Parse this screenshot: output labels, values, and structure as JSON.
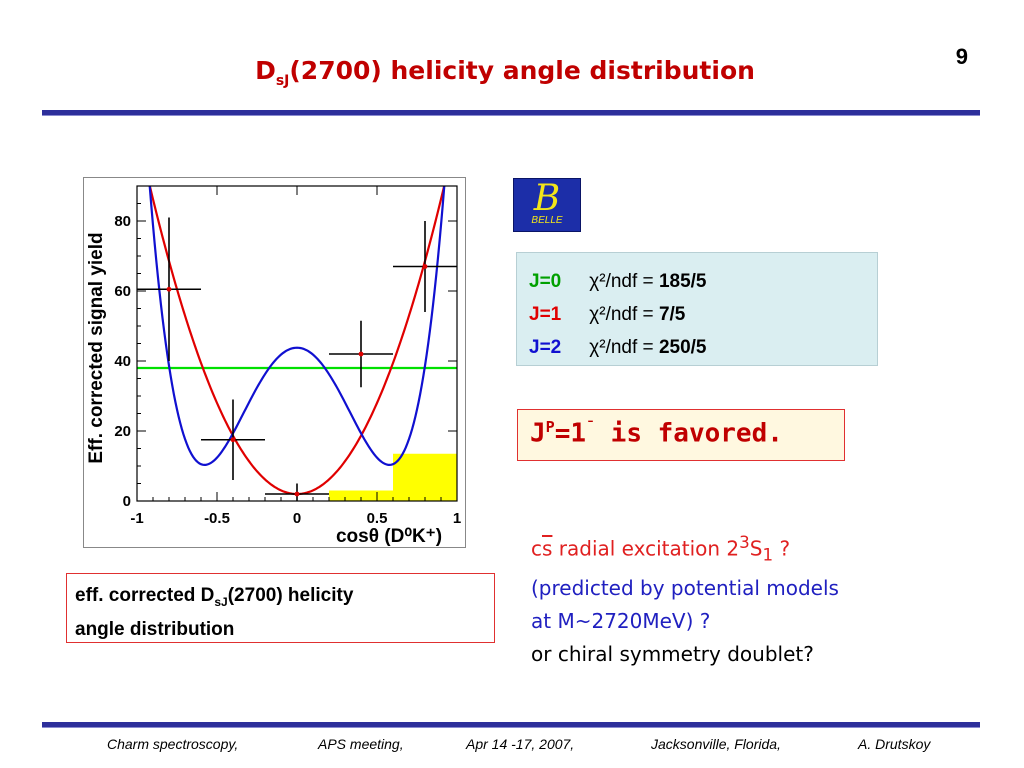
{
  "page_number": "9",
  "title": {
    "prefix": "D",
    "subscript": "sJ",
    "suffix": "(2700)  helicity angle distribution"
  },
  "colors": {
    "title": "#c00000",
    "rule": "#2d2f9b",
    "j0": "#00a000",
    "j1": "#e00000",
    "j2": "#1010d0",
    "fit_box": "#daeef1",
    "background_fill": "#ffff00"
  },
  "logo": {
    "symbol": "B",
    "word": "BELLE"
  },
  "fit_results": [
    {
      "label": "J=0",
      "chi_label": "χ²/ndf =",
      "value": "185/5",
      "color": "#00a000"
    },
    {
      "label": "J=1",
      "chi_label": "χ²/ndf =",
      "value": "7/5",
      "color": "#e00000"
    },
    {
      "label": "J=2",
      "chi_label": "χ²/ndf =",
      "value": "250/5",
      "color": "#1010d0"
    }
  ],
  "conclusion": {
    "prefix": "J",
    "sup": "P",
    "suffix": "=1",
    "minus": "ˉ",
    "rest": " is favored."
  },
  "caption": {
    "part1": "eff. corrected D",
    "subscript": "sJ",
    "part2": "(2700) helicity",
    "line2": "angle distribution"
  },
  "notes": {
    "line1_cs": "cs",
    "line1_rest": " radial excitation 2",
    "line1_sup": "3",
    "line1_S": "S",
    "line1_sub": "1",
    "line1_end": " ?",
    "line2": "(predicted by potential models",
    "line3": "at  M~2720MeV) ?",
    "line4": "or chiral symmetry  doublet?"
  },
  "footer": {
    "topic": "Charm spectroscopy,",
    "meeting": "APS meeting,",
    "date": "Apr 14 -17, 2007,",
    "place": "Jacksonville, Florida,",
    "author": "A. Drutskoy"
  },
  "chart_data": {
    "type": "scatter",
    "ylabel": "Eff. corrected signal yield",
    "xlabel": "cosθ (D⁰K⁺)",
    "xlim": [
      -1,
      1
    ],
    "ylim": [
      0,
      90
    ],
    "x_ticks": [
      "-1",
      "-0.5",
      "0",
      "0.5",
      "1"
    ],
    "y_ticks": [
      "0",
      "20",
      "40",
      "60",
      "80"
    ],
    "points": [
      {
        "x": -0.8,
        "y": 60.5,
        "xerr": 0.2,
        "yerr": 20.5
      },
      {
        "x": -0.4,
        "y": 17.5,
        "xerr": 0.2,
        "yerr": 11.5
      },
      {
        "x": 0.0,
        "y": 2.0,
        "xerr": 0.2,
        "yerr": 3.0
      },
      {
        "x": 0.4,
        "y": 42.0,
        "xerr": 0.2,
        "yerr": 9.5
      },
      {
        "x": 0.8,
        "y": 67.0,
        "xerr": 0.2,
        "yerr": 13.0
      }
    ],
    "fits": [
      {
        "name": "J=0",
        "color": "#00e000",
        "shape": "flat",
        "params": [
          38
        ]
      },
      {
        "name": "J=1",
        "color": "#e00000",
        "shape": "a+b*x^2",
        "params": [
          2,
          104
        ]
      },
      {
        "name": "J=2",
        "color": "#1010d0",
        "shape": "a*(3x^2-1)^2+c",
        "params": [
          10.3,
          33.5
        ]
      }
    ],
    "background_bins": [
      {
        "x0": 0.2,
        "x1": 0.6,
        "y": 3
      },
      {
        "x0": 0.6,
        "x1": 1.0,
        "y": 13.5
      }
    ]
  }
}
